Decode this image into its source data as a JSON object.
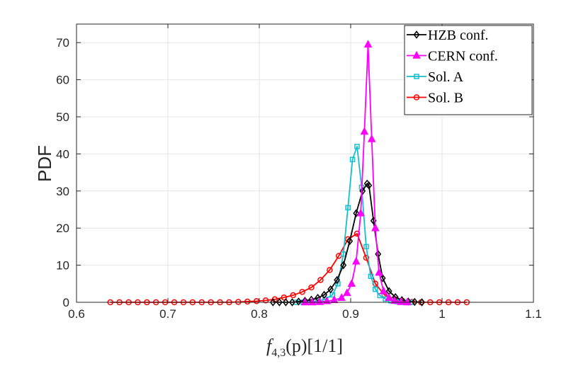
{
  "chart_data": {
    "type": "line",
    "title": "",
    "xlabel": "f_{4,3}(p)[1/1]",
    "xlabel_parts": {
      "main": "f",
      "sub": "4,3",
      "arg": "(p)[1/1]"
    },
    "ylabel": "PDF",
    "xlim": [
      0.6,
      1.1
    ],
    "ylim": [
      0,
      75
    ],
    "xticks": [
      0.6,
      0.7,
      0.8,
      0.9,
      1.0,
      1.1
    ],
    "xtick_labels": [
      "0.6",
      "0.7",
      "0.8",
      "0.9",
      "1",
      "1.1"
    ],
    "yticks": [
      0,
      10,
      20,
      30,
      40,
      50,
      60,
      70
    ],
    "ytick_labels": [
      "0",
      "10",
      "20",
      "30",
      "40",
      "50",
      "60",
      "70"
    ],
    "grid": true,
    "legend_position": "top-right",
    "series": [
      {
        "name": "HZB conf.",
        "color": "#000000",
        "marker": "diamond",
        "x": [
          0.815,
          0.822,
          0.829,
          0.836,
          0.843,
          0.85,
          0.857,
          0.864,
          0.871,
          0.878,
          0.885,
          0.892,
          0.899,
          0.906,
          0.913,
          0.918,
          0.92,
          0.925,
          0.93,
          0.935,
          0.942,
          0.949,
          0.956,
          0.963,
          0.97,
          0.978
        ],
        "y": [
          0,
          0,
          0,
          0,
          0.2,
          0.4,
          0.7,
          1.2,
          2,
          3.5,
          6,
          10,
          16.5,
          24,
          30,
          32,
          31.5,
          22,
          13,
          6.5,
          3,
          1.4,
          0.6,
          0.2,
          0.1,
          0
        ]
      },
      {
        "name": "CERN conf.",
        "color": "#ff00ff",
        "marker": "triangle",
        "x": [
          0.85,
          0.858,
          0.866,
          0.874,
          0.882,
          0.89,
          0.896,
          0.901,
          0.906,
          0.911,
          0.915,
          0.919,
          0.923,
          0.927,
          0.931,
          0.936,
          0.942,
          0.948,
          0.955,
          0.962
        ],
        "y": [
          0,
          0,
          0.1,
          0.3,
          0.6,
          1.2,
          2.5,
          5,
          11,
          24,
          46,
          69.5,
          44,
          20,
          8,
          3,
          1.2,
          0.4,
          0.1,
          0
        ]
      },
      {
        "name": "Sol. A",
        "color": "#17becf",
        "marker": "square",
        "x": [
          0.84,
          0.848,
          0.856,
          0.864,
          0.872,
          0.88,
          0.886,
          0.892,
          0.897,
          0.902,
          0.907,
          0.912,
          0.917,
          0.922,
          0.927,
          0.932,
          0.938,
          0.944,
          0.95,
          0.958,
          0.966
        ],
        "y": [
          0,
          0,
          0.1,
          0.3,
          0.8,
          2,
          5,
          13,
          25.5,
          38.5,
          42,
          31,
          15,
          7,
          3.5,
          1.8,
          0.9,
          0.4,
          0.2,
          0,
          0
        ]
      },
      {
        "name": "Sol. B",
        "color": "#ff0000",
        "marker": "circle",
        "x": [
          0.637,
          0.647,
          0.657,
          0.667,
          0.677,
          0.687,
          0.697,
          0.707,
          0.717,
          0.727,
          0.737,
          0.747,
          0.757,
          0.767,
          0.777,
          0.787,
          0.797,
          0.807,
          0.817,
          0.827,
          0.837,
          0.847,
          0.857,
          0.867,
          0.877,
          0.887,
          0.897,
          0.907,
          0.917,
          0.927,
          0.937,
          0.947,
          0.957,
          0.967,
          0.977,
          0.987,
          0.997,
          1.007,
          1.017,
          1.027
        ],
        "y": [
          0,
          0,
          0,
          0,
          0,
          0,
          0,
          0,
          0,
          0,
          0,
          0,
          0,
          0,
          0.1,
          0.2,
          0.3,
          0.5,
          0.8,
          1.3,
          1.9,
          2.8,
          4,
          6,
          8.7,
          12.5,
          17,
          18.5,
          12,
          5,
          2,
          0.8,
          0.3,
          0.1,
          0,
          0,
          0,
          0,
          0,
          0
        ]
      }
    ]
  }
}
